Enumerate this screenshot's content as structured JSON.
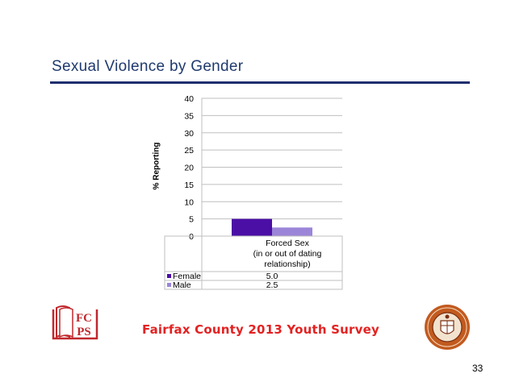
{
  "slide": {
    "title": "Sexual Violence by Gender",
    "footer": "Fairfax County 2013 Youth Survey",
    "page_number": "33"
  },
  "logos": {
    "left_text_top": "FC",
    "left_text_bottom": "PS"
  },
  "chart_data": {
    "type": "bar",
    "ylabel": "% Reporting",
    "ylim": [
      0,
      40
    ],
    "yticks": [
      0,
      5,
      10,
      15,
      20,
      25,
      30,
      35,
      40
    ],
    "categories": [
      "Forced Sex (in or out of dating relationship)"
    ],
    "category_lines": [
      "Forced Sex",
      "(in or out of dating",
      "relationship)"
    ],
    "series": [
      {
        "name": "Female",
        "values": [
          5.0
        ],
        "value_labels": [
          "5.0"
        ],
        "color": "#4b0fa6"
      },
      {
        "name": "Male",
        "values": [
          2.5
        ],
        "value_labels": [
          "2.5"
        ],
        "color": "#9b85d8"
      }
    ],
    "grid": true,
    "legend": "data-table"
  },
  "colors": {
    "title": "#1f3a6e",
    "rule": "#1f2f6e",
    "footer": "#e32222"
  }
}
